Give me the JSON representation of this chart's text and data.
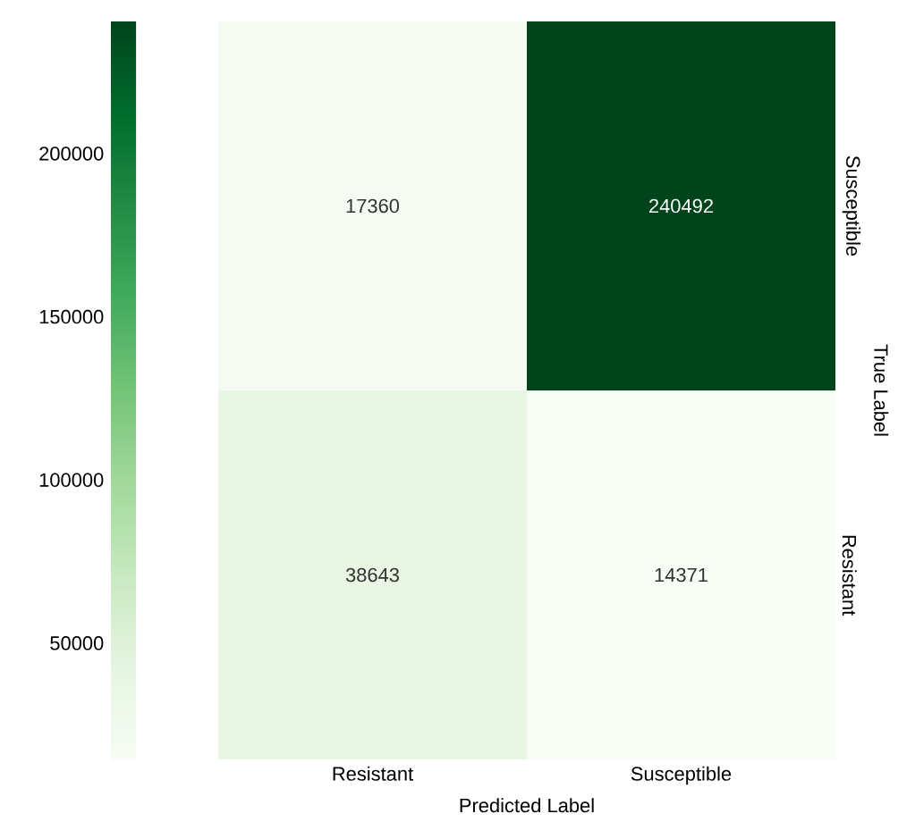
{
  "chart_data": {
    "type": "heatmap",
    "xlabel": "Predicted Label",
    "ylabel": "True Label",
    "categories": [
      "Resistant",
      "Susceptible"
    ],
    "y_categories": [
      "Susceptible",
      "Resistant"
    ],
    "cells": [
      [
        17360,
        240492
      ],
      [
        38643,
        14371
      ]
    ],
    "data_labels": true,
    "clim": [
      14371,
      240492
    ],
    "cticks": [
      50000,
      100000,
      150000,
      200000
    ]
  }
}
